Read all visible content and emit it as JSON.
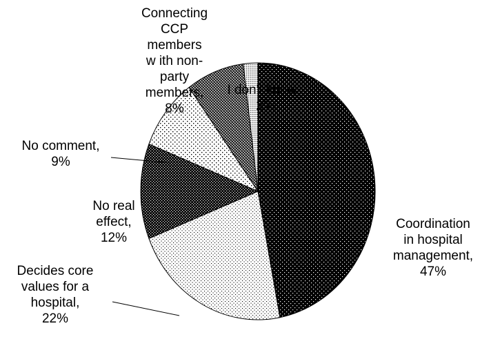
{
  "chart_data": {
    "type": "pie",
    "slices": [
      {
        "label_lines": [
          "Coordination",
          "in hospital",
          "management,",
          "47%"
        ],
        "category": "Coordination in hospital management",
        "value": 47,
        "pattern": "dots-dark"
      },
      {
        "label_lines": [
          "Decides core",
          "values for a",
          "hospital,",
          "22%"
        ],
        "category": "Decides core values for a hospital",
        "value": 22,
        "pattern": "dots-light"
      },
      {
        "label_lines": [
          "No real",
          "effect,",
          "12%"
        ],
        "category": "No real effect",
        "value": 12,
        "pattern": "checker-dark"
      },
      {
        "label_lines": [
          "No comment,",
          "9%"
        ],
        "category": "No comment",
        "value": 9,
        "pattern": "dots-sparse"
      },
      {
        "label_lines": [
          "Connecting",
          "CCP",
          "members",
          "w ith non-",
          "party",
          "members,",
          "8%"
        ],
        "category": "Connecting CCP members with non-party members",
        "value": 8,
        "pattern": "checker-mid"
      },
      {
        "label_lines": [
          "I don't know ,",
          "2%"
        ],
        "category": "I don't know",
        "value": 2,
        "pattern": "grid-light"
      }
    ],
    "colors": {
      "stroke": "#000000",
      "background": "#ffffff"
    }
  }
}
